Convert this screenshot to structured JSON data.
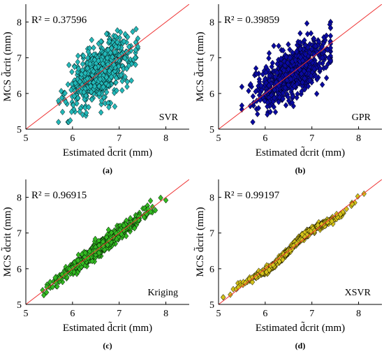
{
  "chart_data": [
    {
      "type": "scatter",
      "panel_label": "(a)",
      "model_label": "SVR",
      "r2_label": "R² = 0.37596",
      "r2_value": 0.37596,
      "xlabel": "Estimated d̃crit (mm)",
      "ylabel": "MCS d̃crit (mm)",
      "xlim": [
        5,
        8.5
      ],
      "ylim": [
        5,
        8.5
      ],
      "xticks": [
        "5",
        "6",
        "7",
        "8"
      ],
      "yticks": [
        "5",
        "6",
        "7",
        "8"
      ],
      "reference_line": "y = x",
      "marker_color": "#22b8b8",
      "line_color": "#ee3333",
      "distribution": {
        "kind": "cloud",
        "x_mean": 6.6,
        "x_sd": 0.35,
        "slope": 0.75,
        "noise_sd": 0.38,
        "x_range": [
          5.7,
          7.4
        ],
        "y_range": [
          5.2,
          8.0
        ]
      }
    },
    {
      "type": "scatter",
      "panel_label": "(b)",
      "model_label": "GPR",
      "r2_label": "R² = 0.39859",
      "r2_value": 0.39859,
      "xlabel": "Estimated d̃crit (mm)",
      "ylabel": "MCS d̃crit (mm)",
      "xlim": [
        5,
        8.5
      ],
      "ylim": [
        5,
        8.5
      ],
      "xticks": [
        "5",
        "6",
        "7",
        "8"
      ],
      "yticks": [
        "5",
        "6",
        "7",
        "8"
      ],
      "reference_line": "y = x",
      "marker_color": "#0a0aa0",
      "line_color": "#ee3333",
      "distribution": {
        "kind": "cloud",
        "x_mean": 6.6,
        "x_sd": 0.4,
        "slope": 0.78,
        "noise_sd": 0.38,
        "x_range": [
          5.5,
          7.4
        ],
        "y_range": [
          5.2,
          8.0
        ]
      }
    },
    {
      "type": "scatter",
      "panel_label": "(c)",
      "model_label": "Kriging",
      "r2_label": "R² = 0.96915",
      "r2_value": 0.96915,
      "xlabel": "Estimated d̃crit (mm)",
      "ylabel": "MCS d̃crit (mm)",
      "xlim": [
        5,
        8.5
      ],
      "ylim": [
        5,
        8.5
      ],
      "xticks": [
        "5",
        "6",
        "7",
        "8"
      ],
      "yticks": [
        "5",
        "6",
        "7",
        "8"
      ],
      "reference_line": "y = x",
      "marker_color": "#33bb22",
      "line_color": "#ee3333",
      "distribution": {
        "kind": "band",
        "x_mean": 6.6,
        "x_sd": 0.45,
        "slope": 1.0,
        "noise_sd": 0.1,
        "x_range": [
          5.2,
          8.0
        ],
        "y_range": [
          5.2,
          8.1
        ]
      }
    },
    {
      "type": "scatter",
      "panel_label": "(d)",
      "model_label": "XSVR",
      "r2_label": "R² = 0.99197",
      "r2_value": 0.99197,
      "xlabel": "Estimated d̃crit (mm)",
      "ylabel": "MCS d̃crit (mm)",
      "xlim": [
        5,
        8.5
      ],
      "ylim": [
        5,
        8.5
      ],
      "xticks": [
        "5",
        "6",
        "7",
        "8"
      ],
      "yticks": [
        "5",
        "6",
        "7",
        "8"
      ],
      "reference_line": "y = x",
      "marker_color": "#d4c21a",
      "line_color": "#ee3333",
      "distribution": {
        "kind": "wavy",
        "x_mean": 6.6,
        "x_sd": 0.5,
        "slope": 1.0,
        "noise_sd": 0.04,
        "x_range": [
          5.1,
          8.2
        ],
        "y_range": [
          5.2,
          8.1
        ]
      }
    }
  ]
}
